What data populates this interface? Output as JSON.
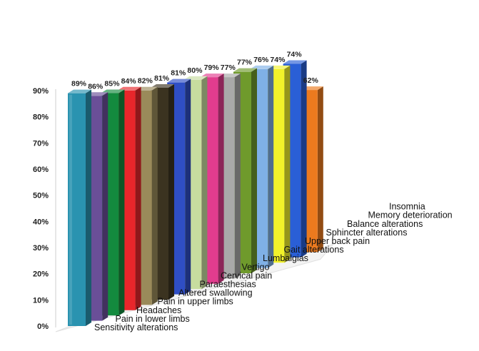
{
  "chart_data": {
    "type": "bar",
    "title": "",
    "xlabel": "",
    "ylabel": "",
    "ylim": [
      0,
      90
    ],
    "yticks": [
      "0%",
      "10%",
      "20%",
      "30%",
      "40%",
      "50%",
      "60%",
      "70%",
      "80%",
      "90%"
    ],
    "grid": false,
    "categories": [
      "Sensitivity alterations",
      "Pain in lower limbs",
      "Headaches",
      "Pain in upper limbs",
      "Altered swallowing",
      "Paraesthesias",
      "Cervical pain",
      "Vertigo",
      "Lumbalgias",
      "Gait alterations",
      "Upper back pain",
      "Sphincter alterations",
      "Balance alterations",
      "Memory deterioration",
      "Insomnia"
    ],
    "values": [
      89,
      86,
      85,
      84,
      82,
      81,
      81,
      80,
      79,
      77,
      77,
      76,
      74,
      74,
      62
    ],
    "value_labels": [
      "89%",
      "86%",
      "85%",
      "84%",
      "82%",
      "81%",
      "81%",
      "80%",
      "79%",
      "77%",
      "77%",
      "76%",
      "74%",
      "74%",
      "62%"
    ],
    "colors": [
      "#2a93b0",
      "#6a4f98",
      "#138a3e",
      "#e8262b",
      "#9a8a5a",
      "#3b3320",
      "#2f4ec4",
      "#c7dd9f",
      "#e23c8e",
      "#a9a9a9",
      "#6f9a2c",
      "#7fb0e6",
      "#f2f22a",
      "#2a5fd6",
      "#ec7a1e"
    ]
  }
}
